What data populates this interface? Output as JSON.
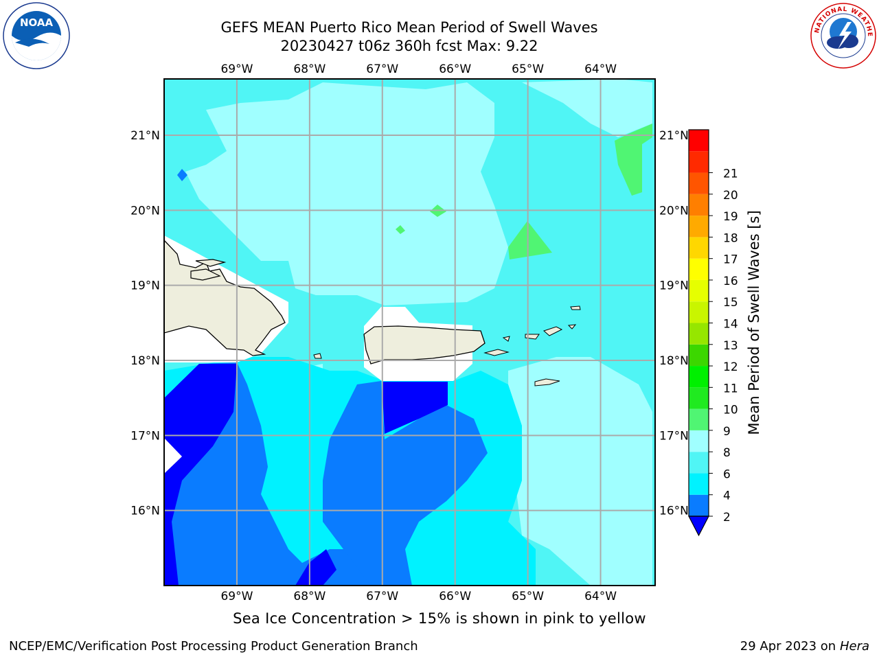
{
  "title": {
    "line1": "GEFS MEAN Puerto Rico Mean Period of Swell Waves",
    "line2": "20230427 t06z 360h fcst   Max: 9.22"
  },
  "logos": {
    "left": "NOAA",
    "left_ring_text": "NATIONAL OCEANIC AND ATMOSPHERIC ADMINISTRATION · U.S. DEPARTMENT OF COMMERCE",
    "right_ring_text": "NATIONAL WEATHER SERVICE"
  },
  "map": {
    "lon_labels": [
      "69°W",
      "68°W",
      "67°W",
      "66°W",
      "65°W",
      "64°W"
    ],
    "lat_labels": [
      "21°N",
      "20°N",
      "19°N",
      "18°N",
      "17°N",
      "16°N"
    ],
    "lon_range": [
      -70.0,
      -63.25
    ],
    "lat_range": [
      15.0,
      21.75
    ],
    "gridlines": true
  },
  "colorbar": {
    "label": "Mean Period of Swell Waves [s]",
    "ticks": [
      "2",
      "4",
      "6",
      "8",
      "9",
      "10",
      "11",
      "12",
      "13",
      "14",
      "15",
      "16",
      "17",
      "18",
      "19",
      "20",
      "21"
    ],
    "colors": [
      "#0000ff",
      "#0a7cff",
      "#00f2ff",
      "#50f5f5",
      "#a0ffff",
      "#50f573",
      "#20ea20",
      "#00f000",
      "#3cd700",
      "#96e600",
      "#c9f500",
      "#e6ff00",
      "#ffff00",
      "#ffd700",
      "#ffaa00",
      "#ff7f00",
      "#ff5500",
      "#ff2a00",
      "#ff0000"
    ],
    "extend_color": "#0000ff"
  },
  "note": "Sea Ice Concentration > 15% is shown in pink to yellow",
  "footer": {
    "left": "NCEP/EMC/Verification Post Processing Product Generation Branch",
    "date": "29 Apr 2023 on ",
    "host": "Hera"
  }
}
